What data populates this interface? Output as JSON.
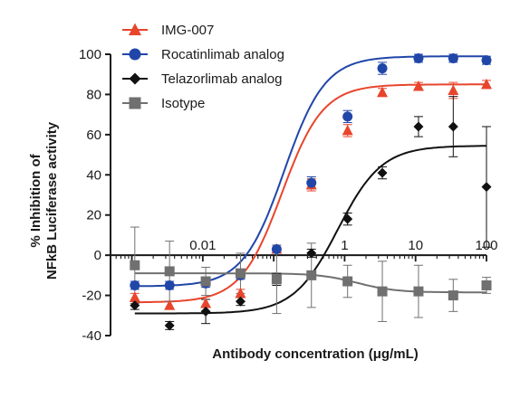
{
  "chart_data": {
    "type": "scatter",
    "xlabel": "Antibody concentration (μg/mL)",
    "ylabel_line1": "% Inhibition of",
    "ylabel_line2": "NFkB Luciferase activity",
    "x_scale": "log",
    "xlim": [
      0.0005,
      100
    ],
    "ylim": [
      -40,
      100
    ],
    "x_tick_labels": [
      {
        "value": 0.01,
        "label": "0.01"
      },
      {
        "value": 1,
        "label": "1"
      },
      {
        "value": 10,
        "label": "10"
      },
      {
        "value": 100,
        "label": "100"
      }
    ],
    "y_ticks": [
      -40,
      -20,
      0,
      20,
      40,
      60,
      80,
      100
    ],
    "legend_position": "top-left",
    "series": [
      {
        "name": "IMG-007",
        "color": "#e8452c",
        "marker": "triangle",
        "x": [
          0.0011,
          0.0034,
          0.011,
          0.034,
          0.11,
          0.34,
          1.1,
          3.4,
          11,
          34,
          100
        ],
        "y": [
          -21,
          -25,
          -24,
          -19,
          3,
          35,
          62,
          81,
          84,
          82,
          85
        ],
        "err": [
          2,
          2,
          2,
          2,
          2,
          3,
          3,
          2,
          2,
          4,
          2
        ],
        "fit": {
          "bottom": -23.5,
          "top": 85,
          "ec50": 0.13,
          "hill": 1.5
        }
      },
      {
        "name": "Rocatinlimab analog",
        "color": "#2046a8",
        "marker": "circle",
        "x": [
          0.0011,
          0.0034,
          0.011,
          0.034,
          0.11,
          0.34,
          1.1,
          3.4,
          11,
          34,
          100
        ],
        "y": [
          -15,
          -15,
          -14,
          -10,
          3,
          36,
          69,
          93,
          98,
          98,
          97
        ],
        "err": [
          2,
          2,
          2,
          2,
          2,
          3,
          3,
          3,
          2,
          2,
          2
        ],
        "fit": {
          "bottom": -15.5,
          "top": 99,
          "ec50": 0.14,
          "hill": 1.5
        }
      },
      {
        "name": "Telazorlimab analog",
        "color": "#111111",
        "marker": "diamond",
        "x": [
          0.0011,
          0.0034,
          0.011,
          0.034,
          0.11,
          0.34,
          1.1,
          3.4,
          11,
          34,
          100
        ],
        "y": [
          -25,
          -35,
          -28,
          -23,
          -12,
          1,
          18,
          41,
          64,
          64,
          34
        ],
        "err": [
          2,
          2,
          6,
          2,
          3,
          2,
          3,
          3,
          5,
          15,
          30
        ],
        "fit": {
          "bottom": -29,
          "top": 54.5,
          "ec50": 0.8,
          "hill": 1.4
        }
      },
      {
        "name": "Isotype",
        "color": "#707070",
        "marker": "square",
        "x": [
          0.0011,
          0.0034,
          0.011,
          0.034,
          0.11,
          0.34,
          1.1,
          3.4,
          11,
          34,
          100
        ],
        "y": [
          -5,
          -8,
          -13,
          -9,
          -12,
          -10,
          -13,
          -18,
          -18,
          -20,
          -15
        ],
        "err": [
          19,
          15,
          7,
          10,
          17,
          16,
          8,
          15,
          13,
          8,
          4
        ],
        "fit": {
          "bottom": -9,
          "top": -18.5,
          "ec50": 1.5,
          "hill": 1.6
        }
      }
    ]
  }
}
